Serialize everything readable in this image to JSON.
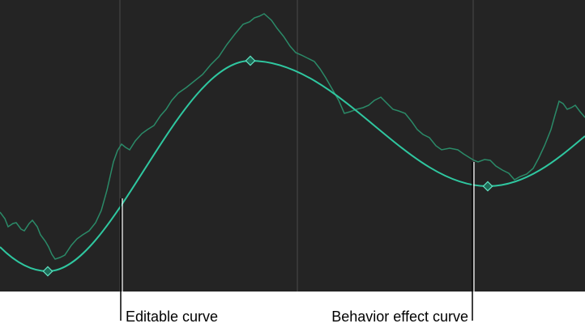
{
  "callouts": [
    {
      "label": "Editable curve"
    },
    {
      "label": "Behavior effect curve"
    }
  ]
}
